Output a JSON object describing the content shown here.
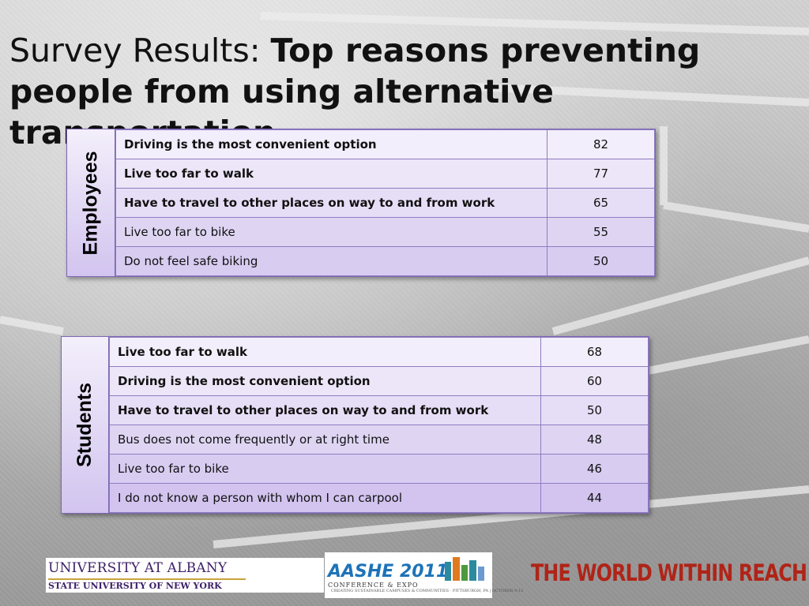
{
  "slide": {
    "title_light": "Survey Results: ",
    "title_bold": "Top reasons preventing people from using alternative transportation"
  },
  "employees": {
    "label": "Employees",
    "rows": [
      {
        "reason": "Driving is the most convenient option",
        "value": "82",
        "bold": true
      },
      {
        "reason": "Live too far to walk",
        "value": "77",
        "bold": true
      },
      {
        "reason": "Have to travel to other places on way to and from work",
        "value": "65",
        "bold": true
      },
      {
        "reason": "Live too far to bike",
        "value": "55",
        "bold": false
      },
      {
        "reason": "Do not feel safe biking",
        "value": "50",
        "bold": false
      }
    ]
  },
  "students": {
    "label": "Students",
    "rows": [
      {
        "reason": "Live too far to walk",
        "value": "68",
        "bold": true
      },
      {
        "reason": "Driving is the most convenient option",
        "value": "60",
        "bold": true
      },
      {
        "reason": "Have to travel to other places on way to and from work",
        "value": "50",
        "bold": true
      },
      {
        "reason": "Bus does not come frequently or at right time",
        "value": "48",
        "bold": false
      },
      {
        "reason": "Live too far to bike",
        "value": "46",
        "bold": false
      },
      {
        "reason": "I do not know a person with whom I can carpool",
        "value": "44",
        "bold": false
      }
    ]
  },
  "logos": {
    "ualbany_line1": "UNIVERSITY AT ALBANY",
    "ualbany_line2": "STATE UNIVERSITY OF NEW YORK",
    "aashe_name": "AASHE 2011",
    "aashe_sub": "CONFERENCE & EXPO",
    "aashe_tag": "CREATING SUSTAINABLE CAMPUSES & COMMUNITIES · PITTSBURGH, PA | OCTOBER 9-12",
    "world": "THE WORLD WITHIN REACH"
  },
  "colors": {
    "table_border": "#7d68b3",
    "row_light": "#f2eefb",
    "row_dark": "#d2c4ef",
    "world_red": "#b02418",
    "albany_purple": "#3b1f66",
    "aashe_blue": "#1e73b8"
  }
}
